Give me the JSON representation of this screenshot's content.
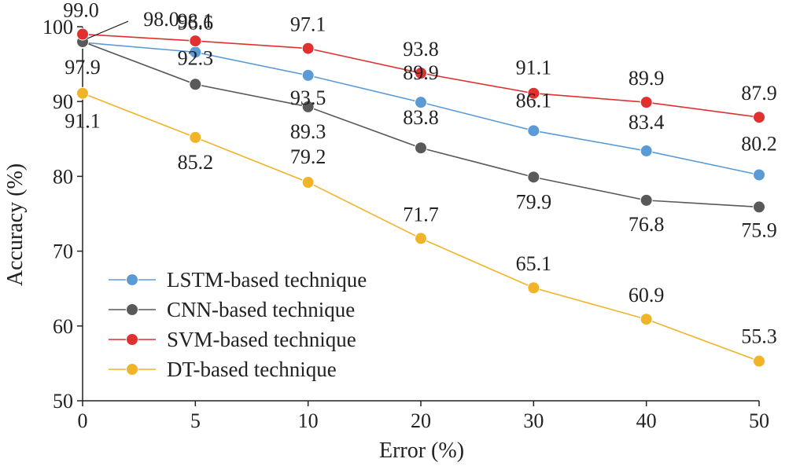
{
  "chart_data": {
    "type": "line",
    "title": "",
    "xlabel": "Error (%)",
    "ylabel": "Accuracy (%)",
    "categories": [
      "0",
      "5",
      "10",
      "20",
      "30",
      "40",
      "50"
    ],
    "ylim": [
      50,
      100
    ],
    "yticks": [
      "50",
      "60",
      "70",
      "80",
      "90",
      "100"
    ],
    "grid": false,
    "legend_position": "bottom-left",
    "series": [
      {
        "name": "LSTM-based technique",
        "color": "#5b9bd5",
        "values": [
          97.9,
          96.6,
          93.5,
          89.9,
          86.1,
          83.4,
          80.2
        ],
        "labels": [
          "97.9",
          "96.6",
          "93.5",
          "89.9",
          "86.1",
          "83.4",
          "80.2"
        ]
      },
      {
        "name": "CNN-based technique",
        "color": "#595959",
        "values": [
          98.0,
          92.3,
          89.3,
          83.8,
          79.9,
          76.8,
          75.9
        ],
        "labels": [
          "98.0",
          "92.3",
          "89.3",
          "83.8",
          "79.9",
          "76.8",
          "75.9"
        ]
      },
      {
        "name": "SVM-based technique",
        "color": "#e03030",
        "values": [
          99.0,
          98.1,
          97.1,
          93.8,
          91.1,
          89.9,
          87.9
        ],
        "labels": [
          "99.0",
          "98.1",
          "97.1",
          "93.8",
          "91.1",
          "89.9",
          "87.9"
        ]
      },
      {
        "name": "DT-based technique",
        "color": "#f0b429",
        "values": [
          91.1,
          85.2,
          79.2,
          71.7,
          65.1,
          60.9,
          55.3
        ],
        "labels": [
          "91.1",
          "85.2",
          "79.2",
          "71.7",
          "65.1",
          "60.9",
          "55.3"
        ]
      }
    ]
  }
}
